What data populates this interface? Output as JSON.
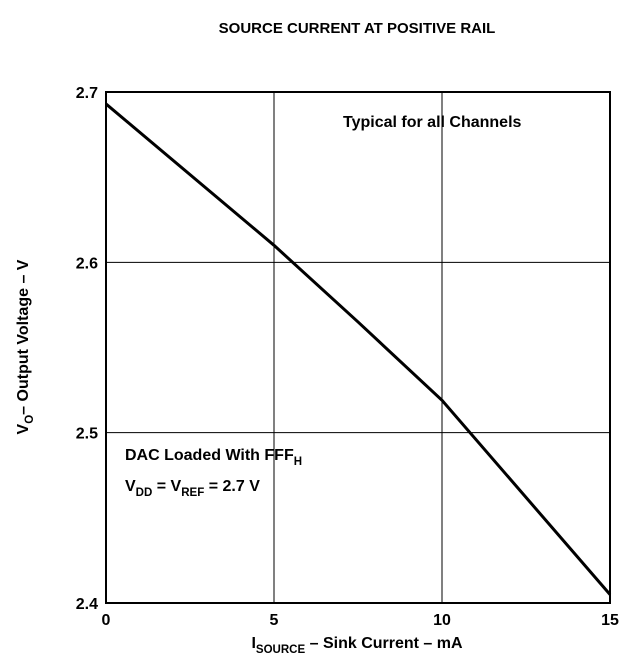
{
  "chart_data": {
    "type": "line",
    "title": "SOURCE CURRENT AT POSITIVE RAIL",
    "xlabel": [
      {
        "text": "I"
      },
      {
        "text": "SOURCE",
        "sub": true
      },
      {
        "text": " – Sink Current – mA"
      }
    ],
    "ylabel": [
      {
        "text": "V"
      },
      {
        "text": "O",
        "sub": true
      },
      {
        "text": "– Output Voltage – V"
      }
    ],
    "annotations": [
      [
        {
          "text": "Typical for all Channels"
        }
      ],
      [
        {
          "text": "DAC Loaded With FFF"
        },
        {
          "text": "H",
          "sub": true
        }
      ],
      [
        {
          "text": "V"
        },
        {
          "text": "DD",
          "sub": true
        },
        {
          "text": " = V"
        },
        {
          "text": "REF",
          "sub": true
        },
        {
          "text": " = 2.7 V"
        }
      ]
    ],
    "x": [
      0,
      5,
      7.5,
      10,
      15
    ],
    "values": [
      2.693,
      2.61,
      2.565,
      2.519,
      2.405
    ],
    "color": "#000000",
    "xlim": [
      0,
      15
    ],
    "xticks": [
      0,
      5,
      10,
      15
    ],
    "ylim": [
      2.4,
      2.7
    ],
    "yticks": [
      2.4,
      2.5,
      2.6,
      2.7
    ],
    "grid": true
  }
}
